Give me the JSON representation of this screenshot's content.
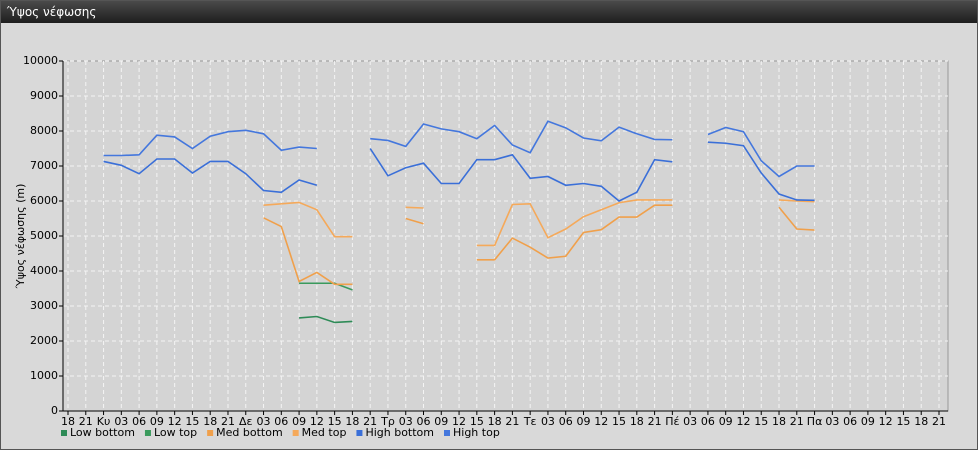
{
  "chart_data": {
    "type": "line",
    "title": "Ύψος νέφωσης",
    "y_label": "Ύψος νέφωσης (m)",
    "categories": [
      "18",
      "21",
      "Κυ",
      "03",
      "06",
      "09",
      "12",
      "15",
      "18",
      "21",
      "Δε",
      "03",
      "06",
      "09",
      "12",
      "15",
      "18",
      "21",
      "Τρ",
      "03",
      "06",
      "09",
      "12",
      "15",
      "18",
      "21",
      "Τε",
      "03",
      "06",
      "09",
      "12",
      "15",
      "18",
      "21",
      "Πέ",
      "03",
      "06",
      "09",
      "12",
      "15",
      "18",
      "21",
      "Πα",
      "03",
      "06",
      "09",
      "12",
      "15",
      "18",
      "21"
    ],
    "ylim": [
      0,
      10000
    ],
    "yticks": [
      0,
      1000,
      2000,
      3000,
      4000,
      5000,
      6000,
      7000,
      8000,
      9000,
      10000
    ],
    "grid": true,
    "series": [
      {
        "name": "Low bottom",
        "color": "#2e8b57",
        "values": [
          null,
          null,
          null,
          null,
          null,
          null,
          null,
          null,
          null,
          null,
          null,
          null,
          null,
          2660,
          2700,
          2530,
          2560,
          null,
          null,
          null,
          null,
          null,
          null,
          null,
          null,
          null,
          null,
          null,
          null,
          null,
          null,
          null,
          null,
          null,
          null,
          null,
          null,
          null,
          null,
          null,
          null,
          null,
          null,
          null,
          null,
          null,
          null,
          null,
          null,
          null
        ]
      },
      {
        "name": "Low top",
        "color": "#3a9a5c",
        "values": [
          null,
          null,
          null,
          null,
          null,
          null,
          null,
          null,
          null,
          null,
          null,
          null,
          null,
          3650,
          3650,
          3650,
          3460,
          null,
          null,
          null,
          null,
          null,
          null,
          null,
          null,
          null,
          null,
          null,
          null,
          null,
          null,
          null,
          null,
          null,
          null,
          null,
          null,
          null,
          null,
          null,
          null,
          null,
          null,
          null,
          null,
          null,
          null,
          null,
          null,
          null
        ]
      },
      {
        "name": "Med bottom",
        "color": "#f0a04b",
        "values": [
          null,
          null,
          null,
          null,
          null,
          null,
          null,
          null,
          null,
          null,
          null,
          5520,
          5270,
          3700,
          3960,
          3620,
          3620,
          null,
          null,
          5500,
          5350,
          null,
          null,
          4320,
          4320,
          4940,
          4680,
          4370,
          4420,
          5100,
          5180,
          5540,
          5540,
          5880,
          5880,
          null,
          null,
          null,
          null,
          null,
          5820,
          5200,
          5170,
          null,
          null,
          null,
          null,
          null,
          null,
          null
        ]
      },
      {
        "name": "Med top",
        "color": "#f5a95a",
        "values": [
          null,
          null,
          null,
          null,
          null,
          null,
          null,
          null,
          null,
          null,
          null,
          5880,
          5920,
          5960,
          5750,
          4980,
          4980,
          null,
          null,
          5820,
          5800,
          null,
          null,
          4730,
          4730,
          5900,
          5920,
          4950,
          5200,
          5550,
          5750,
          5950,
          6030,
          6030,
          6030,
          null,
          null,
          null,
          null,
          null,
          6030,
          6000,
          5980,
          null,
          null,
          null,
          null,
          null,
          null,
          null
        ]
      },
      {
        "name": "High bottom",
        "color": "#3a6fd8",
        "values": [
          null,
          null,
          7130,
          7020,
          6780,
          7200,
          7200,
          6800,
          7130,
          7130,
          6780,
          6300,
          6250,
          6600,
          6450,
          null,
          null,
          7500,
          6720,
          6950,
          7080,
          6500,
          6500,
          7180,
          7180,
          7320,
          6650,
          6700,
          6450,
          6500,
          6420,
          6000,
          6250,
          7180,
          7120,
          null,
          7680,
          7650,
          7580,
          6800,
          6200,
          6030,
          6020,
          null,
          null,
          null,
          null,
          null,
          null,
          null
        ]
      },
      {
        "name": "High top",
        "color": "#4477dd",
        "values": [
          null,
          null,
          7300,
          7300,
          7320,
          7880,
          7830,
          7500,
          7850,
          7980,
          8020,
          7920,
          7450,
          7540,
          7500,
          null,
          null,
          7780,
          7730,
          7560,
          8200,
          8060,
          7980,
          7780,
          8160,
          7600,
          7380,
          8280,
          8090,
          7800,
          7720,
          8110,
          7920,
          7760,
          7750,
          null,
          7900,
          8100,
          7980,
          7150,
          6700,
          7000,
          7000,
          null,
          null,
          null,
          null,
          null,
          null,
          null
        ]
      }
    ]
  }
}
